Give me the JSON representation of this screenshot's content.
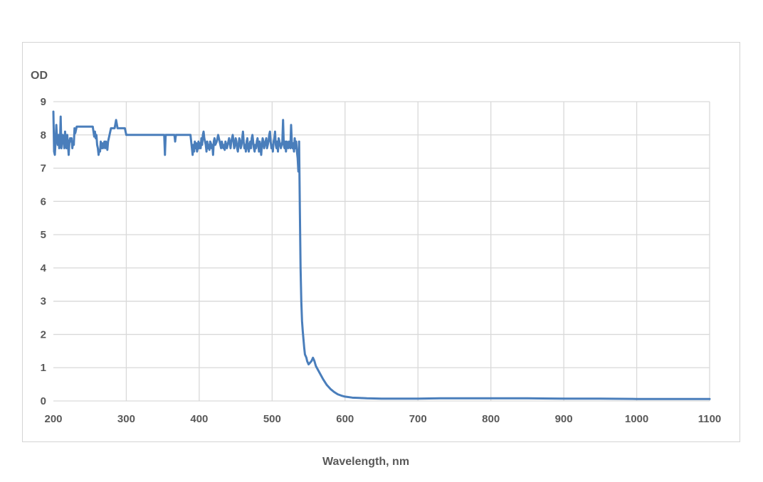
{
  "chart_data": {
    "type": "line",
    "title": "",
    "xlabel": "Wavelength, nm",
    "ylabel": "OD",
    "xlim": [
      200,
      1100
    ],
    "ylim": [
      0,
      9
    ],
    "x_ticks": [
      200,
      300,
      400,
      500,
      600,
      700,
      800,
      900,
      1000,
      1100
    ],
    "y_ticks": [
      0,
      1,
      2,
      3,
      4,
      5,
      6,
      7,
      8,
      9
    ],
    "grid": true,
    "legend": "none",
    "series": [
      {
        "color": "#4a7ebb",
        "x": [
          200,
          201,
          202,
          203,
          204,
          205,
          206,
          207,
          208,
          209,
          210,
          211,
          212,
          213,
          214,
          215,
          216,
          217,
          218,
          219,
          220,
          221,
          222,
          223,
          224,
          225,
          226,
          227,
          228,
          229,
          230,
          232,
          235,
          240,
          245,
          250,
          254,
          255,
          256,
          257,
          258,
          259,
          260,
          261,
          262,
          263,
          264,
          265,
          266,
          267,
          268,
          269,
          270,
          271,
          272,
          273,
          274,
          275,
          276,
          277,
          278,
          279,
          280,
          282,
          284,
          286,
          288,
          290,
          292,
          295,
          298,
          300,
          320,
          340,
          352,
          353,
          354,
          355,
          356,
          358,
          362,
          366,
          367,
          368,
          369,
          370,
          375,
          380,
          385,
          388,
          389,
          390,
          391,
          392,
          393,
          394,
          395,
          396,
          397,
          398,
          399,
          400,
          401,
          402,
          403,
          404,
          405,
          406,
          407,
          408,
          409,
          410,
          411,
          412,
          413,
          414,
          415,
          416,
          417,
          418,
          419,
          420,
          421,
          422,
          423,
          424,
          425,
          426,
          427,
          428,
          429,
          430,
          431,
          432,
          433,
          434,
          435,
          436,
          437,
          438,
          439,
          440,
          441,
          442,
          443,
          444,
          445,
          446,
          447,
          448,
          449,
          450,
          451,
          452,
          453,
          454,
          455,
          456,
          457,
          458,
          459,
          460,
          461,
          462,
          463,
          464,
          465,
          466,
          467,
          468,
          469,
          470,
          471,
          472,
          473,
          474,
          475,
          476,
          477,
          478,
          479,
          480,
          481,
          482,
          483,
          484,
          485,
          486,
          487,
          488,
          489,
          490,
          491,
          492,
          493,
          494,
          495,
          496,
          497,
          498,
          499,
          500,
          501,
          502,
          503,
          504,
          505,
          506,
          507,
          508,
          509,
          510,
          511,
          512,
          513,
          514,
          515,
          516,
          517,
          518,
          519,
          520,
          521,
          522,
          523,
          524,
          525,
          526,
          527,
          528,
          529,
          530,
          531,
          532,
          533,
          534,
          535,
          536,
          537,
          538,
          539,
          540,
          541,
          542,
          543,
          544,
          545,
          546,
          547,
          548,
          549,
          550,
          552,
          554,
          556,
          558,
          560,
          565,
          570,
          575,
          580,
          585,
          590,
          595,
          600,
          610,
          620,
          630,
          650,
          700,
          730,
          800,
          850,
          900,
          950,
          1000,
          1050,
          1100
        ],
        "y": [
          8.7,
          7.5,
          7.4,
          7.8,
          8.3,
          7.9,
          7.7,
          8.0,
          7.6,
          7.7,
          8.55,
          7.6,
          7.9,
          8.0,
          7.8,
          7.6,
          8.1,
          7.8,
          7.6,
          8.0,
          7.7,
          7.4,
          7.8,
          7.9,
          7.8,
          7.9,
          7.6,
          7.8,
          7.7,
          8.2,
          8.05,
          8.25,
          8.25,
          8.25,
          8.25,
          8.25,
          8.25,
          8.1,
          7.95,
          8.1,
          7.9,
          8.0,
          7.7,
          7.6,
          7.4,
          7.55,
          7.5,
          7.8,
          7.6,
          7.75,
          7.6,
          7.7,
          7.8,
          7.6,
          7.8,
          7.7,
          7.55,
          7.8,
          7.9,
          8.0,
          8.1,
          8.2,
          8.2,
          8.2,
          8.2,
          8.45,
          8.2,
          8.2,
          8.2,
          8.2,
          8.2,
          8.0,
          8.0,
          8.0,
          8.0,
          7.4,
          8.0,
          8.0,
          8.0,
          8.0,
          8.0,
          8.0,
          7.8,
          8.0,
          8.0,
          8.0,
          8.0,
          8.0,
          8.0,
          8.0,
          7.8,
          7.6,
          7.4,
          7.7,
          7.5,
          7.8,
          7.6,
          7.75,
          7.5,
          7.6,
          7.8,
          7.6,
          7.75,
          7.6,
          7.9,
          7.7,
          8.0,
          8.1,
          7.9,
          7.8,
          7.7,
          7.5,
          7.8,
          7.6,
          7.7,
          7.55,
          7.8,
          7.75,
          7.6,
          7.7,
          7.4,
          7.8,
          7.9,
          7.7,
          7.75,
          7.8,
          7.9,
          8.0,
          7.9,
          7.8,
          7.7,
          7.6,
          7.8,
          7.7,
          7.6,
          7.7,
          7.55,
          7.8,
          7.7,
          7.6,
          7.7,
          7.8,
          7.9,
          7.75,
          7.6,
          7.8,
          7.9,
          8.0,
          7.8,
          7.6,
          7.7,
          7.9,
          7.8,
          7.6,
          7.5,
          7.7,
          7.9,
          7.8,
          7.6,
          7.7,
          7.9,
          8.1,
          7.8,
          7.6,
          7.7,
          7.5,
          7.8,
          7.9,
          7.6,
          7.5,
          7.7,
          7.8,
          7.6,
          7.9,
          8.0,
          7.8,
          7.6,
          7.5,
          7.7,
          7.6,
          7.8,
          7.9,
          7.7,
          7.5,
          7.8,
          7.6,
          7.4,
          7.7,
          7.9,
          7.8,
          7.6,
          7.7,
          7.8,
          7.9,
          7.6,
          7.7,
          7.8,
          8.0,
          8.1,
          7.8,
          7.6,
          7.7,
          7.5,
          7.8,
          7.9,
          8.1,
          7.7,
          7.6,
          7.8,
          7.5,
          7.9,
          7.8,
          7.7,
          7.6,
          7.7,
          7.8,
          8.45,
          7.7,
          7.6,
          7.8,
          7.5,
          7.8,
          7.7,
          7.6,
          7.8,
          7.7,
          7.6,
          8.3,
          7.8,
          7.6,
          7.75,
          7.5,
          7.9,
          7.6,
          7.8,
          7.5,
          7.3,
          6.9,
          7.8,
          5.8,
          4.0,
          3.0,
          2.4,
          2.1,
          1.85,
          1.6,
          1.4,
          1.35,
          1.3,
          1.2,
          1.15,
          1.1,
          1.15,
          1.2,
          1.3,
          1.2,
          1.05,
          0.85,
          0.65,
          0.48,
          0.36,
          0.27,
          0.2,
          0.16,
          0.13,
          0.1,
          0.09,
          0.08,
          0.07,
          0.07,
          0.08,
          0.08,
          0.08,
          0.07,
          0.07,
          0.06,
          0.06,
          0.06
        ]
      }
    ]
  }
}
